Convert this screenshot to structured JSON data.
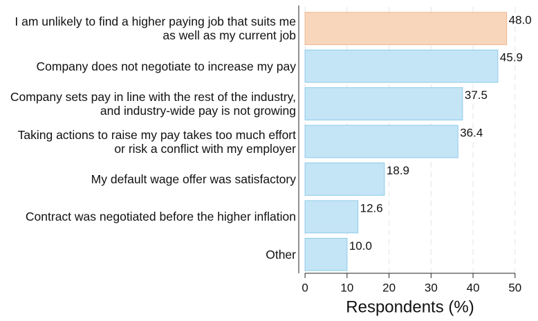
{
  "chart_data": {
    "type": "barh",
    "categories": [
      "I am unlikely to find a higher paying job that suits me as well as my current job",
      "Company does not negotiate to increase my pay",
      "Company sets pay in line with the rest of the industry, and industry-wide pay is not growing",
      "Taking actions to raise my pay takes too much effort or risk a conflict with my employer",
      "My default wage offer was satisfactory",
      "Contract was negotiated before the higher inflation",
      "Other"
    ],
    "values": [
      48.0,
      45.9,
      37.5,
      36.4,
      18.9,
      12.6,
      10.0
    ],
    "value_labels": [
      "48.0",
      "45.9",
      "37.5",
      "36.4",
      "18.9",
      "12.6",
      "10.0"
    ],
    "colors": [
      "#f8d6bc",
      "#c4e5f6",
      "#c4e5f6",
      "#c4e5f6",
      "#c4e5f6",
      "#c4e5f6",
      "#c4e5f6"
    ],
    "edge_colors": [
      "#f0b58c",
      "#8ccbe8",
      "#8ccbe8",
      "#8ccbe8",
      "#8ccbe8",
      "#8ccbe8",
      "#8ccbe8"
    ],
    "xlabel": "Respondents (%)",
    "xlim": [
      -1.5,
      52.5
    ],
    "xticks": [
      0,
      10,
      20,
      30,
      40,
      50
    ],
    "grid": true
  }
}
